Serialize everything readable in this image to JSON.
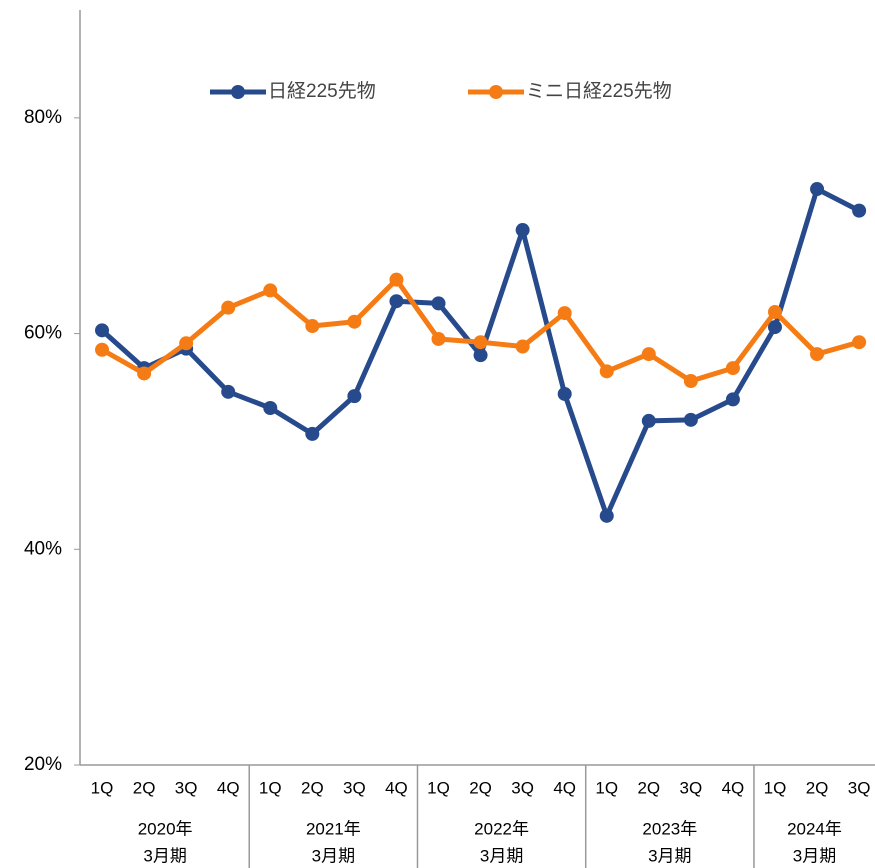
{
  "chart_data": {
    "type": "line",
    "categories": [
      "1Q",
      "2Q",
      "3Q",
      "4Q",
      "1Q",
      "2Q",
      "3Q",
      "4Q",
      "1Q",
      "2Q",
      "3Q",
      "4Q",
      "1Q",
      "2Q",
      "3Q",
      "4Q",
      "1Q",
      "2Q",
      "3Q"
    ],
    "groups": [
      [
        "2020年",
        "3月期"
      ],
      [
        "2021年",
        "3月期"
      ],
      [
        "2022年",
        "3月期"
      ],
      [
        "2023年",
        "3月期"
      ],
      [
        "2024年",
        "3月期"
      ]
    ],
    "series": [
      {
        "name": "日経225先物",
        "color": "#264a8c",
        "values": [
          60.3,
          56.8,
          58.6,
          54.6,
          53.1,
          50.7,
          54.2,
          63.0,
          62.8,
          58.0,
          69.6,
          54.4,
          43.1,
          51.9,
          52.0,
          53.9,
          60.6,
          73.4,
          71.4
        ]
      },
      {
        "name": "ミニ日経225先物",
        "color": "#f57c15",
        "values": [
          58.5,
          56.3,
          59.1,
          62.4,
          64.0,
          60.7,
          61.1,
          65.0,
          59.5,
          59.2,
          58.8,
          61.9,
          56.5,
          58.1,
          55.6,
          56.8,
          62.0,
          58.1,
          59.2
        ]
      }
    ],
    "ylim": [
      20,
      90
    ],
    "yticks": [
      {
        "value": 20,
        "label": "20%"
      },
      {
        "value": 40,
        "label": "40%"
      },
      {
        "value": 60,
        "label": "60%"
      },
      {
        "value": 80,
        "label": "80%"
      }
    ],
    "legend": "top"
  }
}
